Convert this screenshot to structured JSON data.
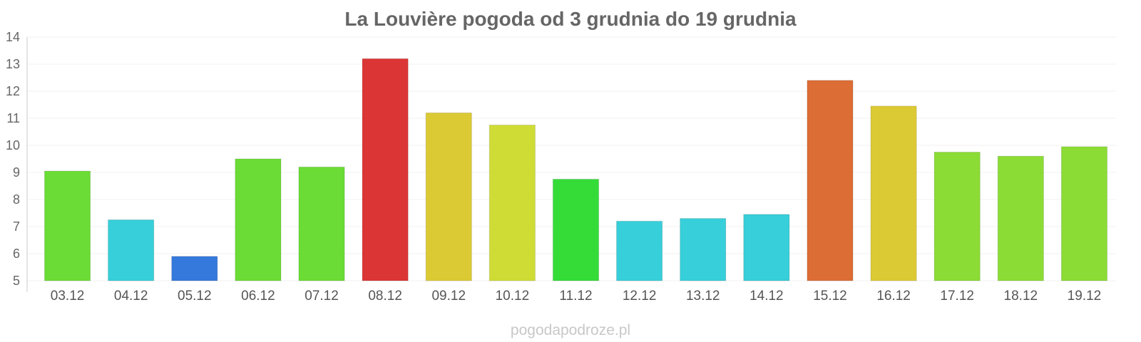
{
  "chart_data": {
    "type": "bar",
    "title": "La Louvière pogoda od 3 grudnia do 19 grudnia",
    "xlabel": "",
    "ylabel": "",
    "ylim": [
      5,
      14
    ],
    "yticks": [
      5,
      6,
      7,
      8,
      9,
      10,
      11,
      12,
      13,
      14
    ],
    "grid": true,
    "categories": [
      "03.12",
      "04.12",
      "05.12",
      "06.12",
      "07.12",
      "08.12",
      "09.12",
      "10.12",
      "11.12",
      "12.12",
      "13.12",
      "14.12",
      "15.12",
      "16.12",
      "17.12",
      "18.12",
      "19.12"
    ],
    "values": [
      9.05,
      7.25,
      5.9,
      9.5,
      9.2,
      13.2,
      11.2,
      10.75,
      8.75,
      7.2,
      7.3,
      7.45,
      12.4,
      11.45,
      9.75,
      9.6,
      9.95
    ],
    "colors": [
      "#6bdc35",
      "#37cfd9",
      "#3579dc",
      "#6bdc35",
      "#6bdc35",
      "#dc3535",
      "#dcca35",
      "#cfdc35",
      "#35dc38",
      "#37cfd9",
      "#37cfd9",
      "#37cfd9",
      "#dc6d35",
      "#dcca35",
      "#8bdc35",
      "#8bdc35",
      "#8bdc35"
    ]
  },
  "watermark": "pogodapodroze.pl"
}
